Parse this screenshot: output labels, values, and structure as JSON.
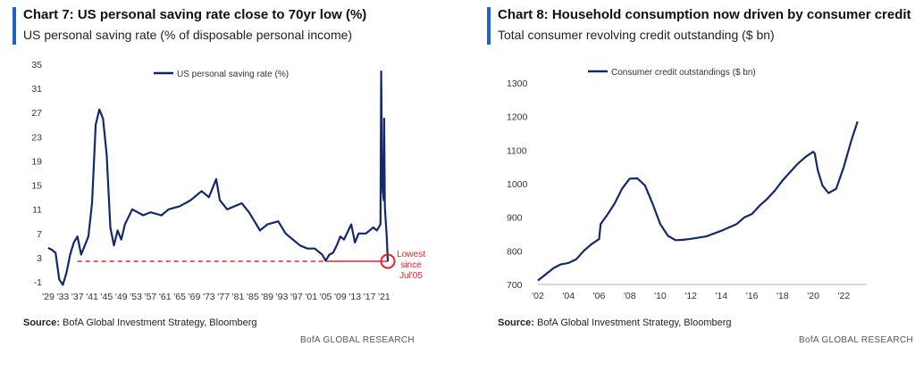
{
  "chart_data": [
    {
      "type": "line",
      "title": "Chart 7: US personal saving rate close to 70yr low (%)",
      "subtitle": "US personal saving rate (% of disposable personal income)",
      "legend": "US personal saving rate (%)",
      "legend_position": "top-center",
      "ylim": [
        -1,
        35
      ],
      "yticks": [
        -1,
        3,
        7,
        11,
        15,
        19,
        23,
        27,
        31,
        35
      ],
      "ytick_labels": [
        "-1",
        "3",
        "7",
        "11",
        "15",
        "19",
        "23",
        "27",
        "31",
        "35"
      ],
      "xlim": [
        1929,
        2022
      ],
      "xticks": [
        1929,
        1933,
        1937,
        1941,
        1945,
        1949,
        1953,
        1957,
        1961,
        1965,
        1969,
        1973,
        1977,
        1981,
        1985,
        1989,
        1993,
        1997,
        2001,
        2005,
        2009,
        2013,
        2017,
        2021
      ],
      "xtick_labels": [
        "'29",
        "'33",
        "'37",
        "'41",
        "'45",
        "'49",
        "'53",
        "'57",
        "'61",
        "'65",
        "'69",
        "'73",
        "'77",
        "'81",
        "'85",
        "'89",
        "'93",
        "'97",
        "'01",
        "'05",
        "'09",
        "'13",
        "'17",
        "'21"
      ],
      "x": [
        1929,
        1930,
        1931,
        1932,
        1933,
        1934,
        1935,
        1936,
        1937,
        1938,
        1939,
        1940,
        1941,
        1942,
        1943,
        1944,
        1945,
        1946,
        1947,
        1948,
        1949,
        1950,
        1952,
        1955,
        1957,
        1960,
        1962,
        1965,
        1968,
        1970,
        1971,
        1973,
        1975,
        1976,
        1978,
        1980,
        1982,
        1984,
        1985,
        1987,
        1989,
        1992,
        1994,
        1996,
        1998,
        2000,
        2002,
        2004,
        2005,
        2006,
        2007,
        2008,
        2009,
        2010,
        2012,
        2013,
        2014,
        2016,
        2018,
        2019,
        2020.0,
        2020.2,
        2020.4,
        2020.6,
        2020.9,
        2021.0,
        2021.2,
        2021.4,
        2021.7,
        2022.0
      ],
      "values": [
        4.6,
        4.3,
        3.8,
        -0.6,
        -1.5,
        0.5,
        3.5,
        5.5,
        6.5,
        3.5,
        5.0,
        6.5,
        12.0,
        25.0,
        27.5,
        26.0,
        20.0,
        8.0,
        5.0,
        7.5,
        6.0,
        8.5,
        11.0,
        10.0,
        10.5,
        10.0,
        11.0,
        11.5,
        12.5,
        13.5,
        14.0,
        13.0,
        16.0,
        12.5,
        11.0,
        11.5,
        12.0,
        10.5,
        9.5,
        7.5,
        8.5,
        9.0,
        7.0,
        6.0,
        5.0,
        4.5,
        4.5,
        3.5,
        2.5,
        3.5,
        3.8,
        5.0,
        6.5,
        6.0,
        8.5,
        5.5,
        7.0,
        7.0,
        8.0,
        7.5,
        8.5,
        33.8,
        19.0,
        14.0,
        12.5,
        26.0,
        11.5,
        9.5,
        6.5,
        2.4
      ],
      "reference_line": {
        "y": 2.4,
        "x_start": 1937,
        "x_end": 2005,
        "label": "",
        "color": "#e0262d"
      },
      "annotation": {
        "text_lines": [
          "Lowest",
          "since",
          "Jul'05"
        ],
        "color": "#e0262d",
        "circle_at": [
          2022,
          2.4
        ]
      },
      "source_label": "Source:",
      "source_text": "BofA Global Investment Strategy, Bloomberg",
      "brand": "BofA GLOBAL RESEARCH",
      "colors": {
        "line": "#13296e",
        "reference": "#e0262d",
        "accent": "#1f5fd0"
      }
    },
    {
      "type": "line",
      "title": "Chart 8: Household consumption now driven by consumer credit",
      "subtitle": "Total consumer revolving credit outstanding ($ bn)",
      "legend": "Consumer credit outstandings ($ bn)",
      "legend_position": "top-left",
      "ylim": [
        700,
        1300
      ],
      "yticks": [
        700,
        800,
        900,
        1000,
        1100,
        1200,
        1300
      ],
      "ytick_labels": [
        "700",
        "800",
        "900",
        "1000",
        "1100",
        "1200",
        "1300"
      ],
      "xlim": [
        2002,
        2023.5
      ],
      "xticks": [
        2002,
        2004,
        2006,
        2008,
        2010,
        2012,
        2014,
        2016,
        2018,
        2020,
        2022
      ],
      "xtick_labels": [
        "'02",
        "'04",
        "'06",
        "'08",
        "'10",
        "'12",
        "'14",
        "'16",
        "'18",
        "'20",
        "'22"
      ],
      "x": [
        2002.0,
        2002.5,
        2003.0,
        2003.5,
        2004.0,
        2004.5,
        2005.0,
        2005.5,
        2006.0,
        2006.1,
        2006.5,
        2007.0,
        2007.5,
        2008.0,
        2008.5,
        2009.0,
        2009.5,
        2010.0,
        2010.5,
        2011.0,
        2011.5,
        2012.0,
        2013.0,
        2014.0,
        2015.0,
        2015.5,
        2016.0,
        2016.5,
        2017.0,
        2017.5,
        2018.0,
        2018.5,
        2019.0,
        2019.5,
        2020.0,
        2020.1,
        2020.3,
        2020.6,
        2021.0,
        2021.5,
        2022.0,
        2022.5,
        2022.9
      ],
      "values": [
        712,
        730,
        748,
        760,
        764,
        775,
        800,
        820,
        835,
        880,
        905,
        940,
        985,
        1015,
        1016,
        995,
        940,
        880,
        845,
        832,
        833,
        836,
        843,
        860,
        880,
        900,
        910,
        935,
        955,
        980,
        1010,
        1035,
        1060,
        1080,
        1095,
        1090,
        1040,
        995,
        972,
        985,
        1050,
        1130,
        1185
      ],
      "source_label": "Source:",
      "source_text": "BofA Global Investment Strategy, Bloomberg",
      "brand": "BofA GLOBAL RESEARCH",
      "colors": {
        "line": "#13296e",
        "accent": "#1f5fd0"
      }
    }
  ]
}
